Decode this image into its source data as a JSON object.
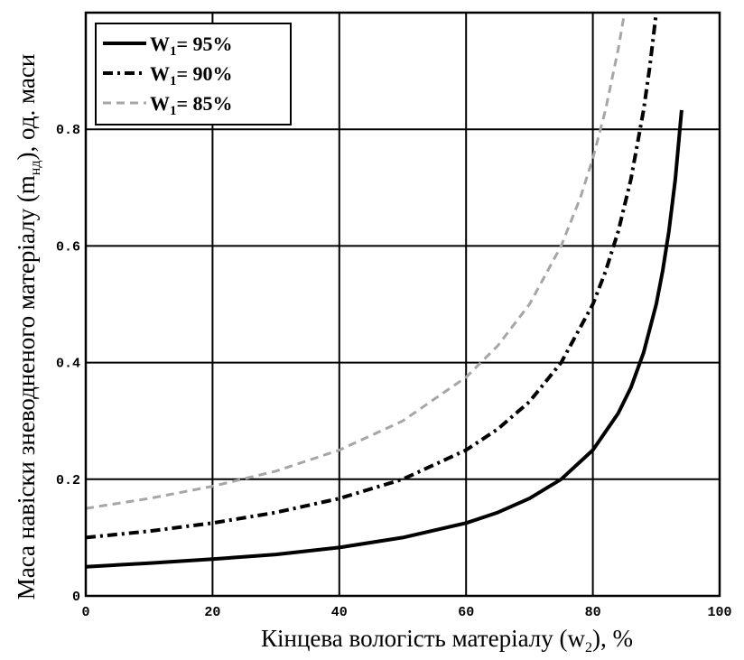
{
  "chart_data": {
    "type": "line",
    "xlabel_main": "Кінцева вологість матеріалу (w",
    "xlabel_sub": "2",
    "xlabel_end": "), %",
    "ylabel_main": "Маса навіски зневодненого матеріалу (m",
    "ylabel_sub": "нд",
    "ylabel_end": "), од. маси",
    "xlim": [
      0,
      100
    ],
    "ylim": [
      0,
      1
    ],
    "x_ticks": [
      "0",
      "20",
      "40",
      "60",
      "80",
      "100"
    ],
    "y_ticks": [
      "0",
      "0.2",
      "0.4",
      "0.6",
      "0.8"
    ],
    "grid": true,
    "legend_position": "top-left",
    "series": [
      {
        "name_main": "W",
        "name_sub": "1",
        "name_end": "= 95%",
        "initial_moisture": 95,
        "style": "solid",
        "color": "#000000",
        "x": [
          0,
          10,
          20,
          30,
          40,
          50,
          60,
          65,
          70,
          75,
          80,
          84,
          86,
          88,
          90,
          91,
          92,
          93,
          94
        ],
        "y": [
          0.05,
          0.056,
          0.063,
          0.071,
          0.083,
          0.1,
          0.125,
          0.143,
          0.167,
          0.2,
          0.25,
          0.313,
          0.357,
          0.417,
          0.5,
          0.556,
          0.625,
          0.714,
          0.833
        ]
      },
      {
        "name_main": "W",
        "name_sub": "1",
        "name_end": "= 90%",
        "initial_moisture": 90,
        "style": "dashdot",
        "color": "#000000",
        "x": [
          0,
          10,
          20,
          30,
          40,
          50,
          60,
          65,
          70,
          75,
          80,
          82,
          84,
          86,
          88,
          89,
          90
        ],
        "y": [
          0.1,
          0.111,
          0.125,
          0.143,
          0.167,
          0.2,
          0.25,
          0.286,
          0.333,
          0.4,
          0.5,
          0.556,
          0.625,
          0.714,
          0.833,
          0.909,
          1.0
        ]
      },
      {
        "name_main": "W",
        "name_sub": "1",
        "name_end": "= 85%",
        "initial_moisture": 85,
        "style": "dashed",
        "color": "#a6a6a6",
        "x": [
          0,
          10,
          20,
          30,
          40,
          50,
          60,
          65,
          70,
          75,
          78,
          80,
          82,
          84,
          85
        ],
        "y": [
          0.15,
          0.167,
          0.188,
          0.214,
          0.25,
          0.3,
          0.375,
          0.429,
          0.5,
          0.6,
          0.682,
          0.75,
          0.833,
          0.9375,
          1.0
        ]
      }
    ]
  }
}
